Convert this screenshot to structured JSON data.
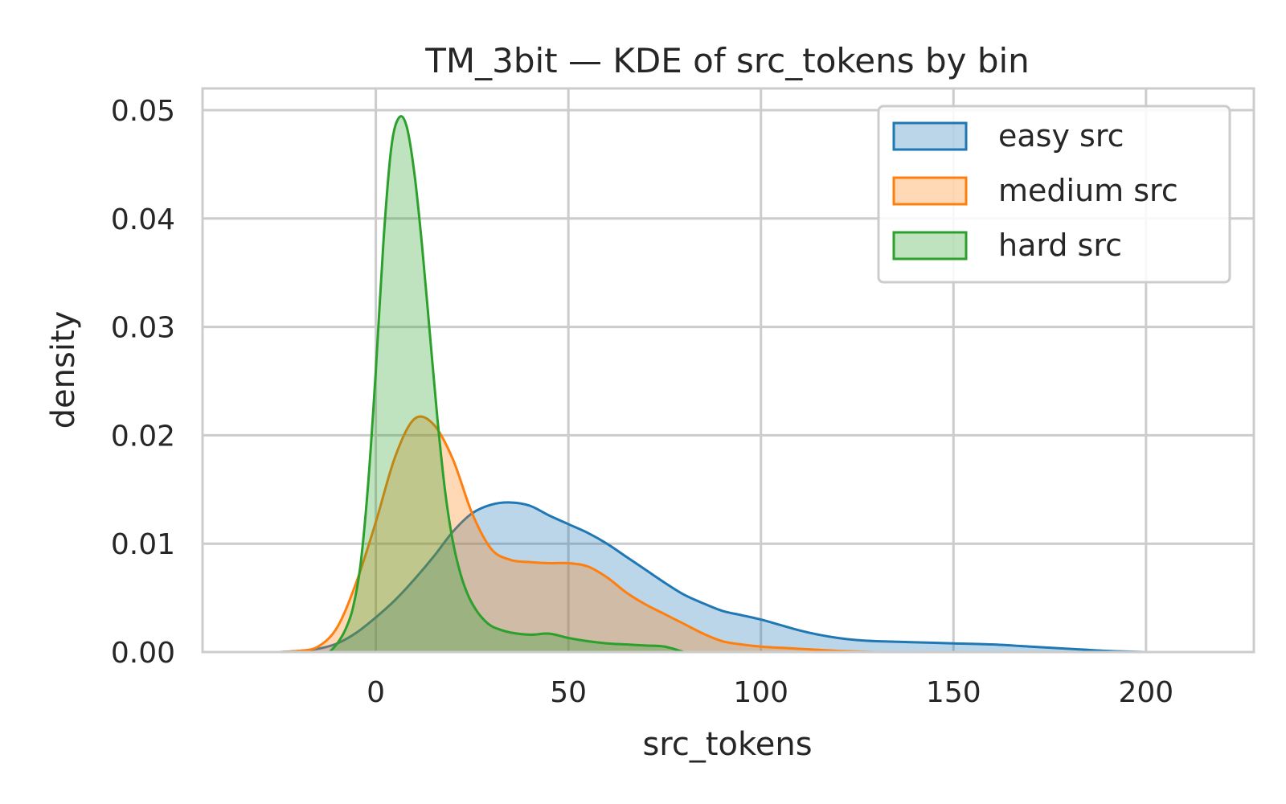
{
  "chart_data": {
    "type": "area",
    "title": "TM_3bit — KDE of src_tokens by bin",
    "xlabel": "src_tokens",
    "ylabel": "density",
    "xlim": [
      -45,
      228
    ],
    "ylim": [
      0,
      0.052
    ],
    "x_ticks": [
      0,
      50,
      100,
      150,
      200
    ],
    "x_tick_labels": [
      "0",
      "50",
      "100",
      "150",
      "200"
    ],
    "y_ticks": [
      0,
      0.01,
      0.02,
      0.03,
      0.04,
      0.05
    ],
    "y_tick_labels": [
      "0.00",
      "0.01",
      "0.02",
      "0.03",
      "0.04",
      "0.05"
    ],
    "grid": true,
    "legend_position": "top-right",
    "series": [
      {
        "name": "easy src",
        "color": "#1f77b4",
        "fill": "#1f77b4",
        "x": [
          -25,
          -20,
          -15,
          -10,
          -5,
          0,
          5,
          10,
          15,
          20,
          25,
          30,
          35,
          40,
          45,
          50,
          55,
          60,
          65,
          70,
          75,
          80,
          85,
          90,
          95,
          100,
          105,
          110,
          115,
          120,
          125,
          130,
          140,
          150,
          160,
          170,
          180,
          190,
          200
        ],
        "y": [
          0,
          0.0001,
          0.0003,
          0.0008,
          0.0018,
          0.0032,
          0.0048,
          0.0067,
          0.0088,
          0.0111,
          0.0128,
          0.0136,
          0.0138,
          0.0135,
          0.0126,
          0.0118,
          0.011,
          0.01,
          0.0088,
          0.0076,
          0.0064,
          0.0053,
          0.0045,
          0.0038,
          0.0034,
          0.003,
          0.0025,
          0.002,
          0.0016,
          0.0013,
          0.0011,
          0.001,
          0.0009,
          0.0008,
          0.0007,
          0.0005,
          0.0003,
          0.0001,
          0
        ]
      },
      {
        "name": "medium src",
        "color": "#ff7f0e",
        "fill": "#ff7f0e",
        "x": [
          -25,
          -20,
          -15,
          -10,
          -5,
          0,
          5,
          10,
          15,
          20,
          25,
          30,
          35,
          40,
          45,
          50,
          55,
          60,
          65,
          70,
          75,
          80,
          85,
          90,
          95,
          100,
          105,
          110,
          115,
          120,
          125,
          130
        ],
        "y": [
          0,
          0.0001,
          0.0005,
          0.0023,
          0.0065,
          0.012,
          0.018,
          0.0215,
          0.021,
          0.0178,
          0.0128,
          0.0095,
          0.0085,
          0.0083,
          0.0082,
          0.0082,
          0.0079,
          0.0069,
          0.0055,
          0.0044,
          0.0035,
          0.0026,
          0.0017,
          0.001,
          0.0007,
          0.0005,
          0.0004,
          0.0003,
          0.0002,
          0.0001,
          5e-05,
          0
        ]
      },
      {
        "name": "hard src",
        "color": "#2ca02c",
        "fill": "#2ca02c",
        "x": [
          -12,
          -10,
          -8,
          -6,
          -4,
          -2,
          0,
          2,
          4,
          6,
          8,
          10,
          12,
          14,
          16,
          18,
          20,
          22,
          24,
          26,
          28,
          30,
          32,
          35,
          40,
          45,
          50,
          55,
          60,
          65,
          70,
          75,
          80
        ],
        "y": [
          0,
          0.0008,
          0.002,
          0.004,
          0.008,
          0.0155,
          0.026,
          0.038,
          0.0465,
          0.0493,
          0.0485,
          0.0442,
          0.0375,
          0.0295,
          0.0215,
          0.0148,
          0.0102,
          0.0072,
          0.0052,
          0.0039,
          0.003,
          0.0024,
          0.0021,
          0.0018,
          0.0016,
          0.0017,
          0.0013,
          0.001,
          0.0008,
          0.0007,
          0.0006,
          0.0005,
          0
        ]
      }
    ]
  }
}
